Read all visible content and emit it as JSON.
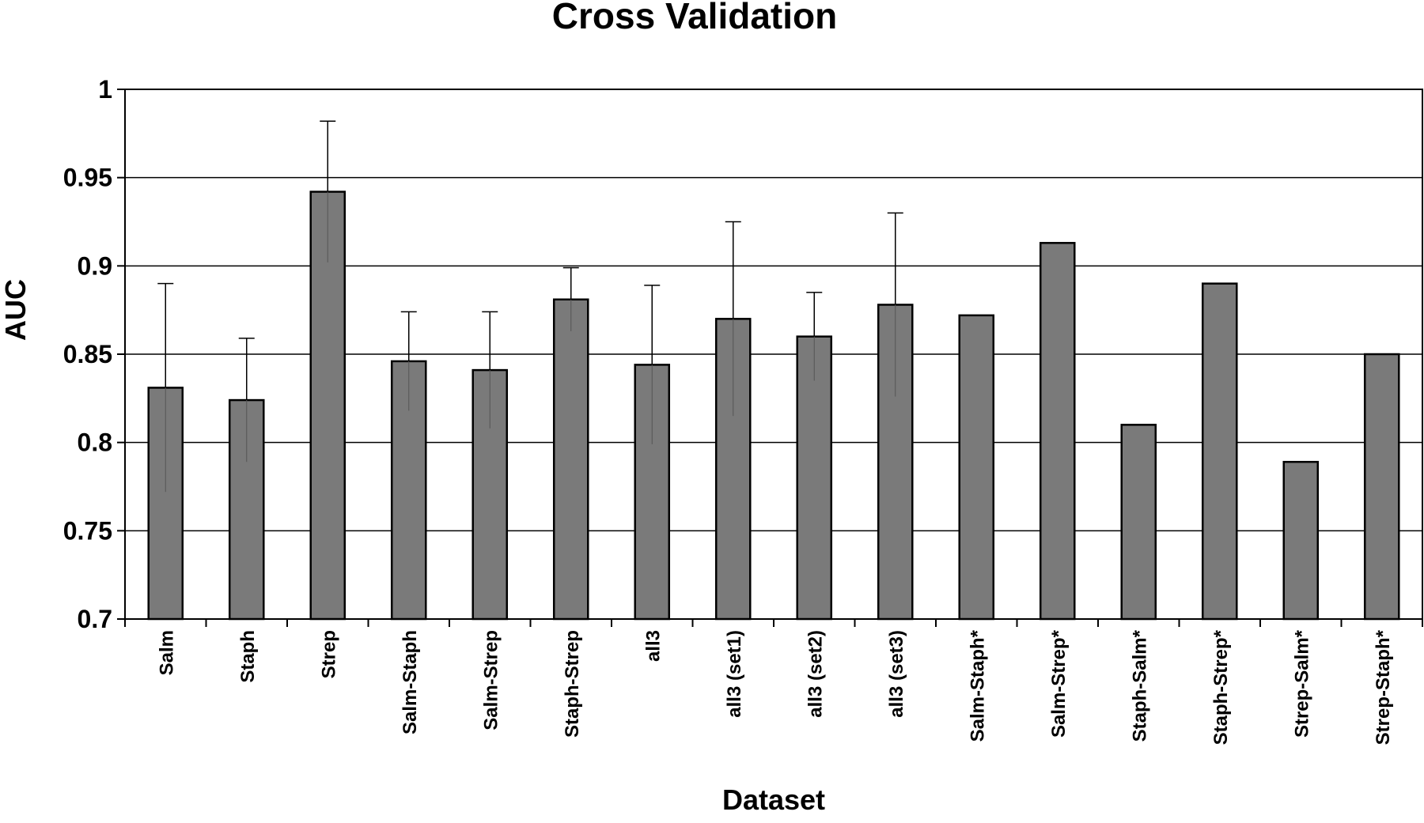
{
  "chart_data": {
    "type": "bar",
    "title": "Cross Validation",
    "xlabel": "Dataset",
    "ylabel": "AUC",
    "ylim": [
      0.7,
      1.0
    ],
    "y_ticks": [
      0.7,
      0.75,
      0.8,
      0.85,
      0.9,
      0.95,
      1.0
    ],
    "y_tick_labels": [
      "0.7",
      "0.75",
      "0.8",
      "0.85",
      "0.9",
      "0.95",
      "1"
    ],
    "grid": true,
    "categories": [
      "Salm",
      "Staph",
      "Strep",
      "Salm-Staph",
      "Salm-Strep",
      "Staph-Strep",
      "all3",
      "all3 (set1)",
      "all3 (set2)",
      "all3 (set3)",
      "Salm-Staph*",
      "Salm-Strep*",
      "Staph-Salm*",
      "Staph-Strep*",
      "Strep-Salm*",
      "Strep-Staph*"
    ],
    "values": [
      0.831,
      0.824,
      0.942,
      0.846,
      0.841,
      0.881,
      0.844,
      0.87,
      0.86,
      0.878,
      0.872,
      0.913,
      0.81,
      0.89,
      0.789,
      0.85
    ],
    "error": [
      0.059,
      0.035,
      0.04,
      0.028,
      0.033,
      0.018,
      0.045,
      0.055,
      0.025,
      0.052,
      null,
      null,
      null,
      null,
      null,
      null
    ],
    "bar_color": "#7a7a7a",
    "edge_color": "#000000"
  }
}
